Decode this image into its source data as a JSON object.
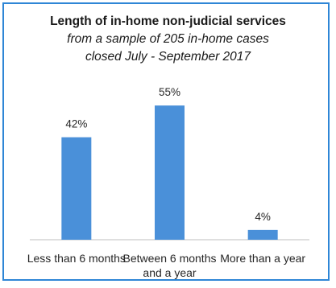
{
  "chart_data": {
    "type": "bar",
    "title": "Length of in-home non-judicial services",
    "subtitle_lines": [
      "from a sample of 205 in-home cases",
      "closed July - September 2017"
    ],
    "categories": [
      "Less than 6 months",
      "Between 6 months and a year",
      "More than a year"
    ],
    "category_label_lines": [
      [
        "Less than 6 months"
      ],
      [
        "Between 6 months",
        "and a year"
      ],
      [
        "More than a year"
      ]
    ],
    "values": [
      42,
      55,
      4
    ],
    "value_labels": [
      "42%",
      "55%",
      "4%"
    ],
    "unit": "%",
    "ylim": [
      0,
      60
    ],
    "grid": false,
    "legend": "none",
    "bar_color": "#4a90d9",
    "border_color": "#2e86d6"
  }
}
